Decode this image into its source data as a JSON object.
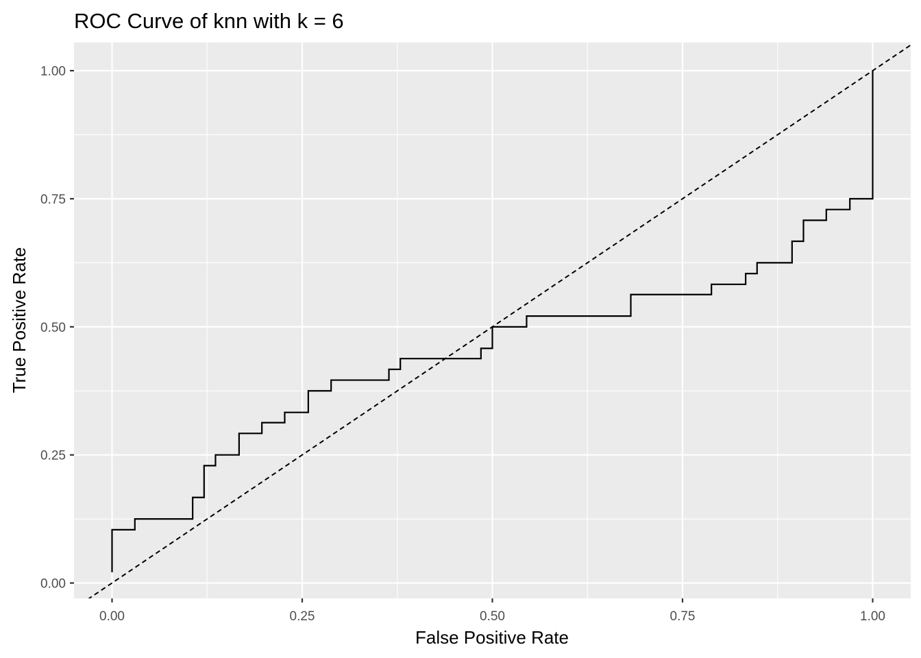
{
  "chart_data": {
    "type": "line",
    "title": "ROC Curve of knn with k = 6",
    "xlabel": "False Positive Rate",
    "ylabel": "True Positive Rate",
    "xlim": [
      -0.05,
      1.05
    ],
    "ylim": [
      -0.03,
      1.055
    ],
    "x_ticks": [
      0,
      0.25,
      0.5,
      0.75,
      1
    ],
    "x_tick_labels": [
      "0.00",
      "0.25",
      "0.50",
      "0.75",
      "1.00"
    ],
    "y_ticks": [
      0,
      0.25,
      0.5,
      0.75,
      1
    ],
    "y_tick_labels": [
      "0.00",
      "0.25",
      "0.50",
      "0.75",
      "1.00"
    ],
    "grid": true,
    "legend": "none",
    "background": "#EBEBEB",
    "line_color": "#000000",
    "series": [
      {
        "x": [
          0.0,
          0.0,
          0.03,
          0.03,
          0.106,
          0.106,
          0.121,
          0.121,
          0.136,
          0.136,
          0.167,
          0.167,
          0.197,
          0.197,
          0.227,
          0.227,
          0.258,
          0.258,
          0.288,
          0.288,
          0.364,
          0.364,
          0.379,
          0.379,
          0.485,
          0.485,
          0.5,
          0.5,
          0.545,
          0.545,
          0.682,
          0.682,
          0.788,
          0.788,
          0.833,
          0.833,
          0.848,
          0.848,
          0.894,
          0.894,
          0.909,
          0.909,
          0.939,
          0.939,
          0.97,
          0.97,
          1.0,
          1.0
        ],
        "y": [
          0.021,
          0.104,
          0.104,
          0.125,
          0.125,
          0.167,
          0.167,
          0.229,
          0.229,
          0.25,
          0.25,
          0.292,
          0.292,
          0.313,
          0.313,
          0.333,
          0.333,
          0.375,
          0.375,
          0.396,
          0.396,
          0.417,
          0.417,
          0.438,
          0.438,
          0.458,
          0.458,
          0.5,
          0.5,
          0.521,
          0.521,
          0.563,
          0.563,
          0.583,
          0.583,
          0.604,
          0.604,
          0.625,
          0.625,
          0.667,
          0.667,
          0.708,
          0.708,
          0.729,
          0.729,
          0.75,
          0.75,
          1.0
        ]
      },
      {
        "style": "dashed",
        "x": [
          -0.05,
          1.05
        ],
        "y": [
          -0.05,
          1.05
        ]
      }
    ]
  }
}
